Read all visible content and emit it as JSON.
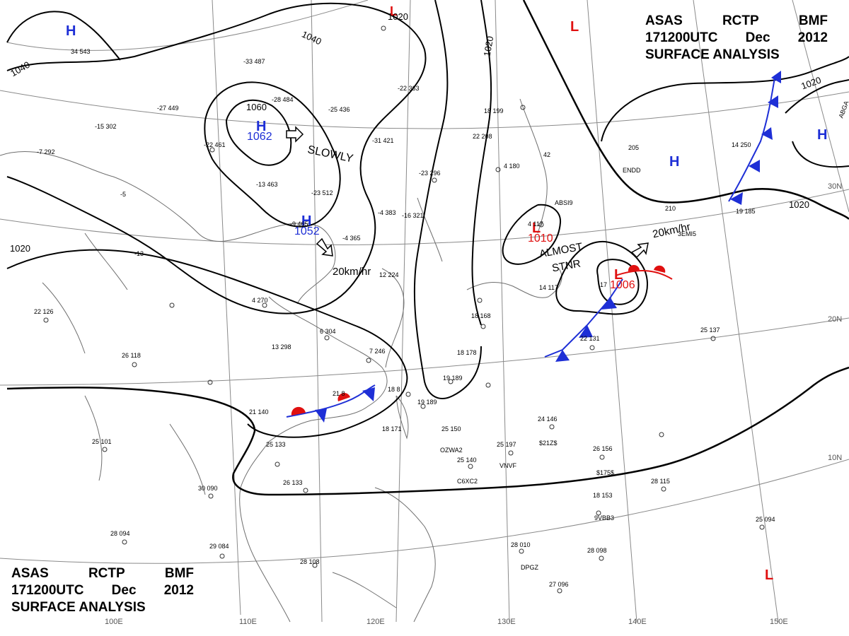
{
  "header": {
    "agency": "ASAS",
    "center": "RCTP",
    "unit": "BMF",
    "time": "171200UTC",
    "month": "Dec",
    "year": "2012",
    "product": "SURFACE  ANALYSIS"
  },
  "pressure_centers": [
    {
      "type": "H",
      "value": "1062",
      "color": "#1e2fd6"
    },
    {
      "type": "H",
      "value": "1052",
      "color": "#1e2fd6"
    },
    {
      "type": "H",
      "value": "",
      "color": "#1e2fd6"
    },
    {
      "type": "H",
      "value": "",
      "color": "#1e2fd6"
    },
    {
      "type": "H",
      "value": "",
      "color": "#1e2fd6"
    },
    {
      "type": "L",
      "value": "1010",
      "color": "#e01010"
    },
    {
      "type": "L",
      "value": "1006",
      "color": "#e01010"
    },
    {
      "type": "L",
      "value": "",
      "color": "#e01010"
    },
    {
      "type": "L",
      "value": "",
      "color": "#e01010"
    },
    {
      "type": "L",
      "value": "",
      "color": "#e01010"
    }
  ],
  "isobar_labels": [
    "1060",
    "1040",
    "1040",
    "1020",
    "1020",
    "1020",
    "1020",
    "1020"
  ],
  "motion_labels": [
    "SLOWLY",
    "20km/hr",
    "20km/hr",
    "ALMOST",
    "STNR"
  ],
  "latitude_labels": [
    "30N",
    "20N",
    "10N"
  ],
  "longitude_labels": [
    "100E",
    "110E",
    "120E",
    "130E",
    "140E",
    "150E"
  ],
  "station_labels": [
    "OZWA2",
    "C6XC2",
    "VNVF",
    "9VBB3",
    "DPGZ",
    "$21Z$",
    "$175$",
    "ABSI9",
    "3EMI5",
    "ENDD",
    "ABGA"
  ],
  "station_obs": [
    "34 543",
    "-33 487",
    "-28 484",
    "-25 436",
    "-22 363",
    "-27 449",
    "-15 302",
    "-22 461",
    "-31 421",
    "-13 463",
    "-23 512",
    "-23 296",
    "-16 321",
    "-9 465",
    "-4 365",
    "-4 383",
    "-13",
    "-5",
    "-7 292",
    "22 126",
    "26 118",
    "4 270",
    "13 298",
    "6 304",
    "7 246",
    "12 224",
    "21 140",
    "25 133",
    "25 101",
    "26 133",
    "30 090",
    "28 094",
    "29 084",
    "28 108",
    "18 171",
    "25 150",
    "25 140",
    "25 197",
    "24 146",
    "26 156",
    "28 115",
    "18 153",
    "28 010",
    "27 096",
    "28 098",
    "25 094",
    "22 131",
    "25 137",
    "17",
    "19 185",
    "14 250",
    "205",
    "210",
    "42",
    "14 117",
    "4 117",
    "4 180",
    "18 199",
    "22 208",
    "18 178",
    "19 189",
    "18 168",
    "19 189",
    "21 8",
    "18 8"
  ],
  "colors": {
    "high": "#1e2fd6",
    "low": "#e01010",
    "cold_front": "#1e2fd6",
    "warm_front": "#e01010",
    "isobar": "#000000",
    "graticule": "#8a8a8a",
    "coast": "#6e6e6e"
  }
}
